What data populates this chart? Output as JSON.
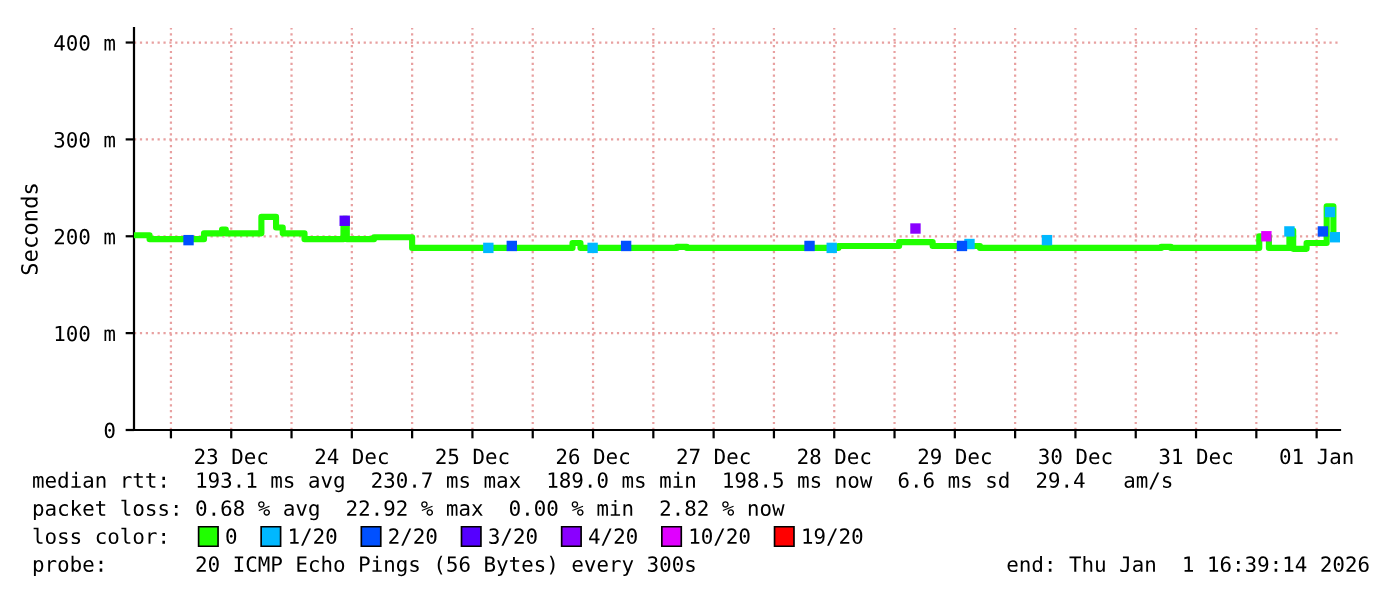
{
  "chart_data": {
    "type": "step",
    "ylabel": "Seconds",
    "xlim": [
      "2025-12-22T16:39",
      "2026-01-01T16:39"
    ],
    "xticks": [
      {
        "value": "2025-12-23T00:00",
        "label": null
      },
      {
        "value": "2025-12-23T12:00",
        "label": "23 Dec"
      },
      {
        "value": "2025-12-24T00:00",
        "label": null
      },
      {
        "value": "2025-12-24T12:00",
        "label": "24 Dec"
      },
      {
        "value": "2025-12-25T00:00",
        "label": null
      },
      {
        "value": "2025-12-25T12:00",
        "label": "25 Dec"
      },
      {
        "value": "2025-12-26T00:00",
        "label": null
      },
      {
        "value": "2025-12-26T12:00",
        "label": "26 Dec"
      },
      {
        "value": "2025-12-27T00:00",
        "label": null
      },
      {
        "value": "2025-12-27T12:00",
        "label": "27 Dec"
      },
      {
        "value": "2025-12-28T00:00",
        "label": null
      },
      {
        "value": "2025-12-28T12:00",
        "label": "28 Dec"
      },
      {
        "value": "2025-12-29T00:00",
        "label": null
      },
      {
        "value": "2025-12-29T12:00",
        "label": "29 Dec"
      },
      {
        "value": "2025-12-30T00:00",
        "label": null
      },
      {
        "value": "2025-12-30T12:00",
        "label": "30 Dec"
      },
      {
        "value": "2025-12-31T00:00",
        "label": null
      },
      {
        "value": "2025-12-31T12:00",
        "label": "31 Dec"
      },
      {
        "value": "2026-01-01T00:00",
        "label": null
      },
      {
        "value": "2026-01-01T12:00",
        "label": "01 Jan"
      }
    ],
    "ylim": [
      0,
      415
    ],
    "yticks": [
      0,
      {
        "value": 100,
        "label": "100 m"
      },
      {
        "value": 200,
        "label": "200 m"
      },
      {
        "value": 300,
        "label": "300 m"
      },
      {
        "value": 400,
        "label": "400 m"
      }
    ],
    "grid": true,
    "legend": "bottom",
    "legend_title": "loss color:",
    "series": [
      {
        "name": "0",
        "color": "#20ff00",
        "x": [
          "2025-12-22T16:39",
          "2025-12-22T19:45",
          "2025-12-23T06:35",
          "2025-12-23T10:10",
          "2025-12-23T10:55",
          "2025-12-23T18:00",
          "2025-12-23T20:55",
          "2025-12-23T22:15",
          "2025-12-24T02:35",
          "2025-12-24T10:20",
          "2025-12-24T11:00",
          "2025-12-24T16:25",
          "2025-12-25T00:00",
          "2025-12-26T07:55",
          "2025-12-26T09:30",
          "2025-12-27T04:40",
          "2025-12-27T06:40",
          "2025-12-28T12:50",
          "2025-12-29T00:55",
          "2025-12-29T07:35",
          "2025-12-29T17:00",
          "2025-12-31T05:05",
          "2025-12-31T07:00",
          "2026-01-01T00:35",
          "2026-01-01T02:30",
          "2026-01-01T06:35",
          "2026-01-01T07:20",
          "2026-01-01T10:00",
          "2026-01-01T14:00",
          "2026-01-01T15:20",
          "2026-01-01T16:39"
        ],
        "values": [
          201,
          197,
          203,
          207,
          203,
          220,
          209,
          203,
          197,
          218,
          197,
          199,
          188,
          193,
          188,
          189,
          188,
          190,
          194,
          190,
          188,
          189,
          188,
          200,
          188,
          206,
          187,
          193,
          231,
          199,
          199
        ]
      },
      {
        "name": "1/20",
        "color": "#00b8ff",
        "type": "scatter",
        "marker": "square",
        "x": [
          "2025-12-25T15:10",
          "2025-12-26T11:55",
          "2025-12-28T11:30",
          "2025-12-29T14:55",
          "2025-12-30T06:20",
          "2026-01-01T06:35",
          "2026-01-01T14:40",
          "2026-01-01T15:40"
        ],
        "values": [
          188,
          188,
          188,
          192,
          196,
          205,
          225,
          199
        ]
      },
      {
        "name": "2/20",
        "color": "#0050ff",
        "type": "scatter",
        "marker": "square",
        "x": [
          "2025-12-23T03:30",
          "2025-12-25T19:50",
          "2025-12-26T18:35",
          "2025-12-28T07:05",
          "2025-12-29T13:25",
          "2026-01-01T13:15"
        ],
        "values": [
          196,
          190,
          190,
          190,
          190,
          205
        ]
      },
      {
        "name": "3/20",
        "color": "#5500ff",
        "type": "scatter",
        "marker": "square",
        "x": [
          "2025-12-24T10:35"
        ],
        "values": [
          216
        ]
      },
      {
        "name": "4/20",
        "color": "#8a00ff",
        "type": "scatter",
        "marker": "square",
        "x": [
          "2025-12-29T04:10"
        ],
        "values": [
          208
        ]
      },
      {
        "name": "10/20",
        "color": "#e000ff",
        "type": "scatter",
        "marker": "square",
        "x": [
          "2026-01-01T02:00"
        ],
        "values": [
          200
        ]
      },
      {
        "name": "19/20",
        "color": "#ff0000",
        "type": "scatter"
      }
    ],
    "annotations": [
      "median rtt:  193.1 ms avg  230.7 ms max  189.0 ms min  198.5 ms now  6.6 ms sd  29.4   am/s",
      "packet loss: 0.68 % avg  22.92 % max  0.00 % min  2.82 % now",
      "probe:       20 ICMP Echo Pings (56 Bytes) every 300s",
      "end: Thu Jan  1 16:39:14 2026"
    ]
  }
}
